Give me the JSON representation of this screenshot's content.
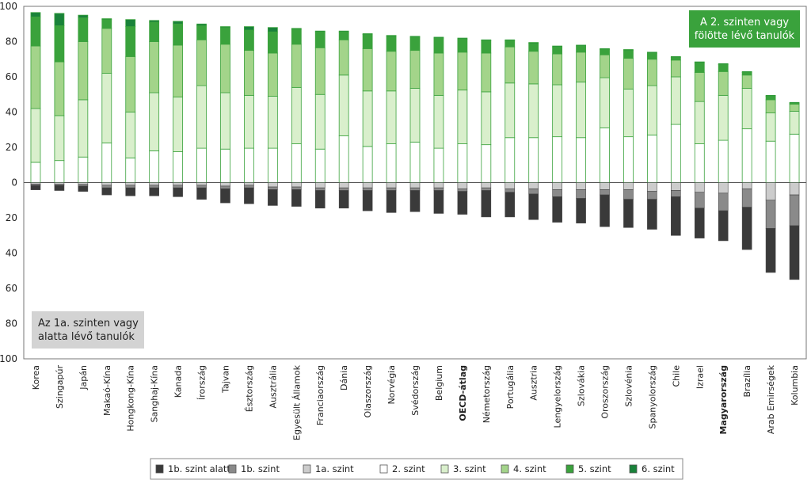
{
  "chart_data": {
    "type": "bar",
    "stacked": "diverging",
    "y_ticks": [
      "100",
      "80",
      "60",
      "40",
      "20",
      "0",
      "20",
      "40",
      "60",
      "80",
      "100"
    ],
    "ylim": [
      -100,
      100
    ],
    "upper_box": {
      "lines": [
        "A 2. szinten vagy",
        "fölötte lévő tanulók"
      ],
      "color": "#3aa23c"
    },
    "lower_box": {
      "lines": [
        "Az 1a. szinten vagy",
        "alatta lévő tanulók"
      ],
      "color": "#d3d3d3"
    },
    "categories": [
      "Korea",
      "Szingapúr",
      "Japán",
      "Makaó-Kína",
      "Hongkong-Kína",
      "Sanghaj-Kína",
      "Kanada",
      "Írország",
      "Tajvan",
      "Észtország",
      "Ausztrália",
      "Egyesült  Államok",
      "Franciaország",
      "Dánia",
      "Olaszország",
      "Norvégia",
      "Svédország",
      "Belgium",
      "OECD-átlag",
      "Németország",
      "Portugália",
      "Ausztria",
      "Lengyelország",
      "Szlovákia",
      "Oroszország",
      "Szlovénia",
      "Spanyolország",
      "Chile",
      "Izrael",
      "Magyarország",
      "Brazília",
      "Arab Emirségek",
      "Kolumbia"
    ],
    "bold_categories": [
      "OECD-átlag",
      "Magyarország"
    ],
    "legend": [
      {
        "key": "below1b",
        "label": "1b. szint alatt",
        "color": "#3a3a3a"
      },
      {
        "key": "l1b",
        "label": "1b. szint",
        "color": "#8a8a8a"
      },
      {
        "key": "l1a",
        "label": "1a. szint",
        "color": "#cccccc"
      },
      {
        "key": "l2",
        "label": "2. szint",
        "color": "#ffffff"
      },
      {
        "key": "l3",
        "label": "3. szint",
        "color": "#d9efcc"
      },
      {
        "key": "l4",
        "label": "4. szint",
        "color": "#a3d48a"
      },
      {
        "key": "l5",
        "label": "5. szint",
        "color": "#3aa23c"
      },
      {
        "key": "l6",
        "label": "6. szint",
        "color": "#19823a"
      }
    ],
    "series_below": [
      {
        "key": "l1a",
        "values": [
          0.8,
          1.0,
          1.0,
          1.5,
          1.5,
          1.5,
          1.5,
          1.5,
          2.0,
          1.5,
          2.5,
          2.5,
          3.0,
          3.0,
          3.0,
          3.0,
          3.0,
          3.0,
          3.5,
          3.0,
          3.5,
          3.5,
          4.0,
          4.0,
          4.0,
          4.0,
          5.0,
          4.5,
          5.5,
          6.0,
          3.5,
          10.0,
          7.0
        ]
      },
      {
        "key": "l1b",
        "values": [
          0.8,
          0.5,
          1.0,
          1.5,
          1.5,
          1.5,
          1.5,
          1.5,
          1.5,
          1.5,
          1.5,
          1.5,
          1.5,
          1.5,
          1.5,
          1.5,
          1.5,
          1.5,
          1.5,
          1.5,
          2.0,
          3.0,
          4.0,
          5.0,
          3.0,
          5.5,
          4.5,
          3.5,
          9.0,
          10.0,
          10.5,
          16.0,
          17.5
        ]
      },
      {
        "key": "below1b",
        "values": [
          2.5,
          3.0,
          3.0,
          4.0,
          4.5,
          4.5,
          5.0,
          6.5,
          8.0,
          9.0,
          9.0,
          9.5,
          10.0,
          10.0,
          11.5,
          12.5,
          12.0,
          13.0,
          13.0,
          15.0,
          14.0,
          14.5,
          14.5,
          14.0,
          18.0,
          16.0,
          17.0,
          22.0,
          17.0,
          17.0,
          24.0,
          25.0,
          30.5
        ]
      }
    ],
    "series_above": [
      {
        "key": "l2",
        "values": [
          11.5,
          12.5,
          14.5,
          22.5,
          14.0,
          18.0,
          17.5,
          19.5,
          19.0,
          19.5,
          19.5,
          22.0,
          19.0,
          26.5,
          20.5,
          22.0,
          23.0,
          19.5,
          22.0,
          21.5,
          25.5,
          25.5,
          26.0,
          25.5,
          31.0,
          26.0,
          27.0,
          33.0,
          22.0,
          24.0,
          30.5,
          23.5,
          27.5
        ]
      },
      {
        "key": "l3",
        "values": [
          30.5,
          25.5,
          32.5,
          39.5,
          26.0,
          33.0,
          31.0,
          35.5,
          32.0,
          30.0,
          29.5,
          32.0,
          31.0,
          34.5,
          31.5,
          30.0,
          30.5,
          30.0,
          30.5,
          30.0,
          31.0,
          30.5,
          29.5,
          31.5,
          28.5,
          27.0,
          28.0,
          27.0,
          24.0,
          25.5,
          23.0,
          16.0,
          13.0
        ]
      },
      {
        "key": "l4",
        "values": [
          35.5,
          30.5,
          33.0,
          25.5,
          31.5,
          29.0,
          29.5,
          26.0,
          27.5,
          25.5,
          24.5,
          24.5,
          26.5,
          20.0,
          24.0,
          22.5,
          21.5,
          24.0,
          21.5,
          22.0,
          20.5,
          18.5,
          17.5,
          17.0,
          13.0,
          17.5,
          15.0,
          9.5,
          16.5,
          13.5,
          7.5,
          7.5,
          4.0
        ]
      },
      {
        "key": "l5",
        "values": [
          16.5,
          20.5,
          13.5,
          5.0,
          17.0,
          11.0,
          12.0,
          8.0,
          9.5,
          11.5,
          12.0,
          8.5,
          9.0,
          4.5,
          8.0,
          8.5,
          7.5,
          8.5,
          7.5,
          7.0,
          3.5,
          4.5,
          4.0,
          3.5,
          3.0,
          4.5,
          3.5,
          1.5,
          5.5,
          4.0,
          1.5,
          2.0,
          0.5
        ]
      },
      {
        "key": "l6",
        "values": [
          2.5,
          7.0,
          1.5,
          0.5,
          4.0,
          1.0,
          1.5,
          1.0,
          0.5,
          2.0,
          2.5,
          0.5,
          0.5,
          0.5,
          0.5,
          0.5,
          0.5,
          0.5,
          0.5,
          0.5,
          0.5,
          0.5,
          0.5,
          0.5,
          0.5,
          0.5,
          0.5,
          0.5,
          0.5,
          0.5,
          0.5,
          0.5,
          0.5
        ]
      }
    ]
  }
}
